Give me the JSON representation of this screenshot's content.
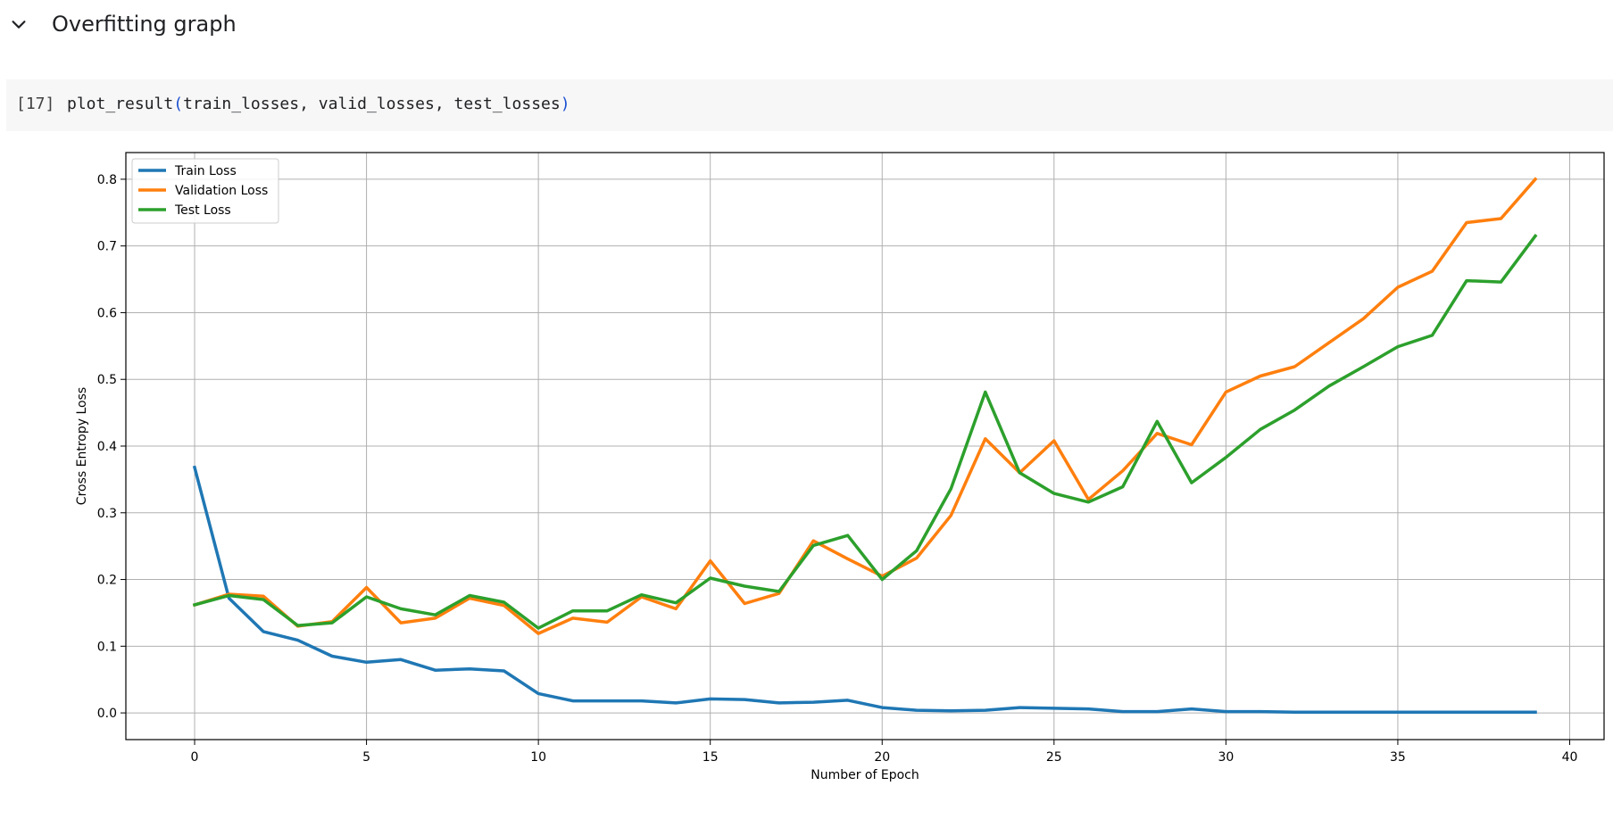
{
  "section": {
    "title": "Overfitting graph",
    "toggle_icon": "chevron-down-icon"
  },
  "cell": {
    "execution_count": "[17]",
    "code_function": "plot_result",
    "code_open_paren": "(",
    "code_args": "train_losses, valid_losses, test_losses",
    "code_close_paren": ")"
  },
  "chart_data": {
    "type": "line",
    "xlabel": "Number of Epoch",
    "ylabel": "Cross Entropy Loss",
    "xlim": [
      -2,
      41
    ],
    "ylim": [
      -0.04,
      0.84
    ],
    "xticks": [
      0,
      5,
      10,
      15,
      20,
      25,
      30,
      35,
      40
    ],
    "yticks": [
      0.0,
      0.1,
      0.2,
      0.3,
      0.4,
      0.5,
      0.6,
      0.7,
      0.8
    ],
    "grid": true,
    "legend_position": "upper-left",
    "x": [
      0,
      1,
      2,
      3,
      4,
      5,
      6,
      7,
      8,
      9,
      10,
      11,
      12,
      13,
      14,
      15,
      16,
      17,
      18,
      19,
      20,
      21,
      22,
      23,
      24,
      25,
      26,
      27,
      28,
      29,
      30,
      31,
      32,
      33,
      34,
      35,
      36,
      37,
      38,
      39
    ],
    "series": [
      {
        "name": "Train Loss",
        "color": "#1f77b4",
        "values": [
          0.368,
          0.172,
          0.122,
          0.109,
          0.085,
          0.076,
          0.08,
          0.064,
          0.066,
          0.063,
          0.029,
          0.018,
          0.018,
          0.018,
          0.015,
          0.021,
          0.02,
          0.015,
          0.016,
          0.019,
          0.008,
          0.004,
          0.003,
          0.004,
          0.008,
          0.007,
          0.006,
          0.002,
          0.002,
          0.006,
          0.002,
          0.002,
          0.001,
          0.001,
          0.001,
          0.001,
          0.001,
          0.001,
          0.001,
          0.001
        ]
      },
      {
        "name": "Validation Loss",
        "color": "#ff7f0e",
        "values": [
          0.162,
          0.178,
          0.175,
          0.13,
          0.137,
          0.188,
          0.135,
          0.142,
          0.172,
          0.161,
          0.119,
          0.142,
          0.136,
          0.174,
          0.156,
          0.228,
          0.164,
          0.179,
          0.258,
          0.231,
          0.205,
          0.232,
          0.296,
          0.411,
          0.36,
          0.408,
          0.32,
          0.363,
          0.419,
          0.402,
          0.481,
          0.505,
          0.519,
          0.555,
          0.591,
          0.638,
          0.662,
          0.735,
          0.741,
          0.8
        ]
      },
      {
        "name": "Test Loss",
        "color": "#2ca02c",
        "values": [
          0.162,
          0.176,
          0.17,
          0.131,
          0.135,
          0.174,
          0.156,
          0.147,
          0.176,
          0.166,
          0.127,
          0.153,
          0.153,
          0.177,
          0.165,
          0.202,
          0.19,
          0.182,
          0.251,
          0.266,
          0.2,
          0.243,
          0.336,
          0.481,
          0.36,
          0.329,
          0.316,
          0.339,
          0.437,
          0.345,
          0.383,
          0.425,
          0.454,
          0.49,
          0.519,
          0.549,
          0.566,
          0.648,
          0.646,
          0.715
        ]
      }
    ]
  }
}
